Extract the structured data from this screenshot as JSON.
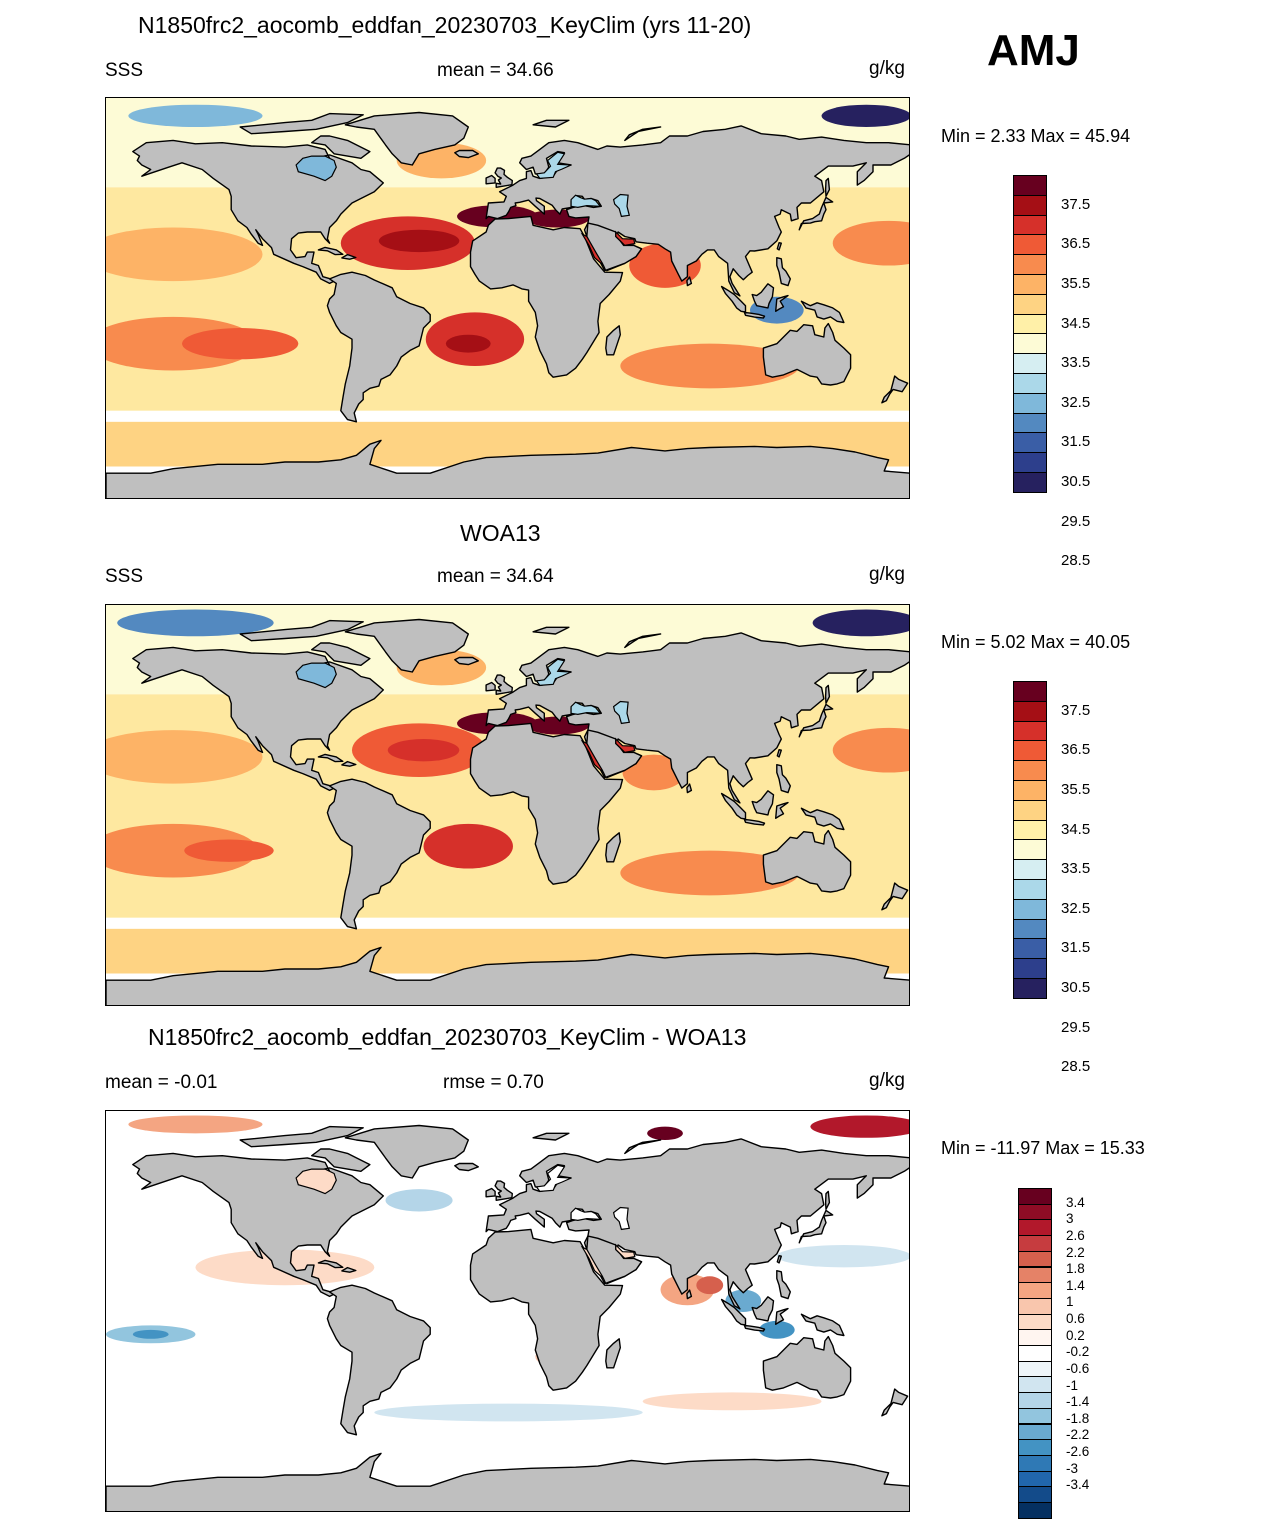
{
  "season": "AMJ",
  "panels": [
    {
      "title": "N1850frc2_aocomb_eddfan_20230703_KeyClim (yrs 11-20)",
      "left_label": "SSS",
      "center_label": "mean =  34.66",
      "unit": "g/kg",
      "minmax": "Min =   2.33 Max =  45.94",
      "kind": "field",
      "colorbar": {
        "colors": [
          "#67001f",
          "#a50f15",
          "#d6302a",
          "#ef5a36",
          "#f88b4e",
          "#fdb366",
          "#fed383",
          "#fff0a8",
          "#fdfbd6",
          "#d6eef2",
          "#abd8e9",
          "#7fb8da",
          "#5389c0",
          "#3a5ea6",
          "#2d3f8c",
          "#26215f"
        ],
        "labels": [
          "37.5",
          "36.5",
          "35.5",
          "34.5",
          "33.5",
          "32.5",
          "31.5",
          "30.5",
          "29.5",
          "28.5"
        ]
      }
    },
    {
      "title": "WOA13",
      "left_label": "SSS",
      "center_label": "mean =  34.64",
      "unit": "g/kg",
      "minmax": "Min =   5.02 Max =  40.05",
      "kind": "field",
      "colorbar": {
        "colors": [
          "#67001f",
          "#a50f15",
          "#d6302a",
          "#ef5a36",
          "#f88b4e",
          "#fdb366",
          "#fed383",
          "#fff0a8",
          "#fdfbd6",
          "#d6eef2",
          "#abd8e9",
          "#7fb8da",
          "#5389c0",
          "#3a5ea6",
          "#2d3f8c",
          "#26215f"
        ],
        "labels": [
          "37.5",
          "36.5",
          "35.5",
          "34.5",
          "33.5",
          "32.5",
          "31.5",
          "30.5",
          "29.5",
          "28.5"
        ]
      }
    },
    {
      "title": "N1850frc2_aocomb_eddfan_20230703_KeyClim - WOA13",
      "left_label": "mean =  -0.01",
      "center_label": "rmse =   0.70",
      "unit": "g/kg",
      "minmax": "Min = -11.97 Max =  15.33",
      "kind": "diff",
      "colorbar": {
        "colors": [
          "#67001f",
          "#8e0c25",
          "#b2182b",
          "#c63c3f",
          "#d6604d",
          "#e58267",
          "#f4a582",
          "#f9c6ad",
          "#fddbc7",
          "#fff5f0",
          "#ffffff",
          "#eef5f9",
          "#d1e5f0",
          "#b4d5e8",
          "#92c5de",
          "#6aaad0",
          "#4393c3",
          "#2f79b5",
          "#2166ac",
          "#134b8a",
          "#053061"
        ],
        "labels": [
          "3.4",
          "3",
          "2.6",
          "2.2",
          "1.8",
          "1.4",
          "1",
          "0.6",
          "0.2",
          "-0.2",
          "-0.6",
          "-1",
          "-1.4",
          "-1.8",
          "-2.2",
          "-2.6",
          "-3",
          "-3.4"
        ]
      }
    }
  ]
}
